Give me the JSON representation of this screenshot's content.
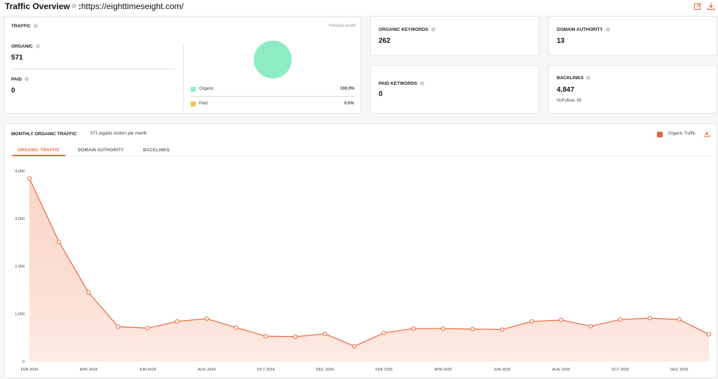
{
  "header": {
    "title": "Traffic Overview",
    "separator": ":",
    "url": "https://eighttimeseight.com/",
    "edit_icon": "edit-icon",
    "download_icon": "download-icon"
  },
  "traffic_card": {
    "label": "TRAFFIC",
    "period": "Previous month",
    "organic_label": "ORGANIC",
    "organic_value": "571",
    "paid_label": "PAID",
    "paid_value": "0",
    "legend": [
      {
        "name": "Organic",
        "percent": "100.0%",
        "color": "#8eecc4"
      },
      {
        "name": "Paid",
        "percent": "0.0%",
        "color": "#f3bd5b"
      }
    ]
  },
  "organic_keywords": {
    "label": "ORGANIC KEYWORDS",
    "value": "262"
  },
  "domain_authority": {
    "label": "DOMAIN AUTHORITY",
    "value": "13"
  },
  "paid_keywords": {
    "label": "PAID KEYWORDS",
    "value": "0"
  },
  "backlinks": {
    "label": "BACKLINKS",
    "value": "4,847",
    "nofollow": "NoFollow: 59"
  },
  "monthly": {
    "title": "MONTHLY ORGANIC TRAFFIC",
    "subtitle": "571 organic visitors per month",
    "legend_label": "Organic Traffic",
    "accent": "#e8643c",
    "tabs": [
      "ORGANIC TRAFFIC",
      "DOMAIN AUTHORITY",
      "BACKLINKS"
    ]
  },
  "chart_data": {
    "type": "area",
    "ylim": [
      0,
      4000
    ],
    "yticks": [
      "4,000",
      "3,000",
      "2,000",
      "1,000",
      "0"
    ],
    "ytick_values": [
      4000,
      3000,
      2000,
      1000,
      0
    ],
    "x": [
      "FEB 2024",
      "MAR 2024",
      "APR 2024",
      "MAY 2024",
      "JUN 2024",
      "JUL 2024",
      "AUG 2024",
      "SEP 2024",
      "OCT 2024",
      "NOV 2024",
      "DEC 2024",
      "JAN 2025",
      "FEB 2025",
      "MAR 2025",
      "APR 2025",
      "MAY 2025",
      "JUN 2025",
      "JUL 2025",
      "AUG 2025",
      "SEP 2025",
      "OCT 2025",
      "NOV 2025",
      "DEC 2025",
      "JAN 2026"
    ],
    "xtick_labels": [
      "FEB 2024",
      "APR 2024",
      "JUN 2024",
      "AUG 2024",
      "OCT 2024",
      "DEC 2024",
      "FEB 2025",
      "APR 2025",
      "JUN 2025",
      "AUG 2025",
      "OCT 2025",
      "DEC 2025"
    ],
    "series": [
      {
        "name": "Organic Traffic",
        "values": [
          3840,
          2510,
          1450,
          730,
          700,
          840,
          900,
          710,
          530,
          520,
          580,
          320,
          600,
          690,
          690,
          680,
          670,
          840,
          870,
          740,
          880,
          910,
          880,
          571
        ]
      }
    ],
    "grid": false
  }
}
